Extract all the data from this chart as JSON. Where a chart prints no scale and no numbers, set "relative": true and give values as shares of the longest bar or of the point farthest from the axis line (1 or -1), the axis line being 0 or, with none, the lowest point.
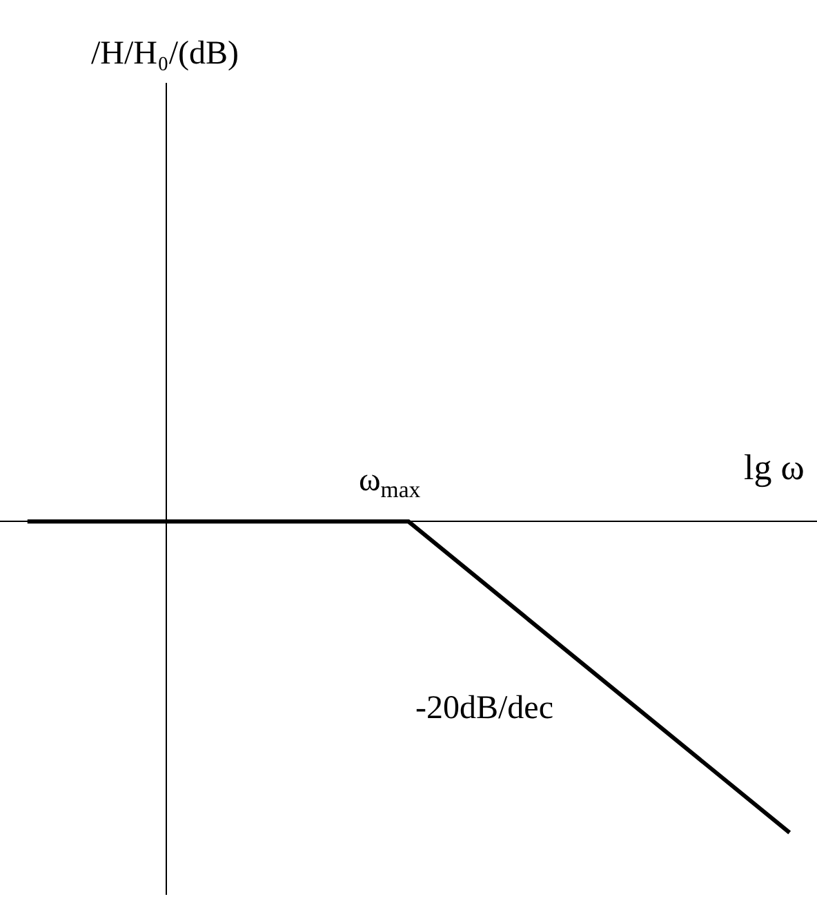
{
  "chart_data": {
    "type": "line",
    "relative": true,
    "xlabel": "lg ω",
    "categories": [
      null,
      null,
      null
    ],
    "series": [
      {
        "color": "#000000",
        "values": [
          0,
          0,
          -1
        ]
      }
    ],
    "annotations": [
      "/H/H₀/(dB)",
      "ω$_{max}$",
      "-20dB/dec"
    ],
    "marker": "none",
    "line_style": "solid"
  }
}
